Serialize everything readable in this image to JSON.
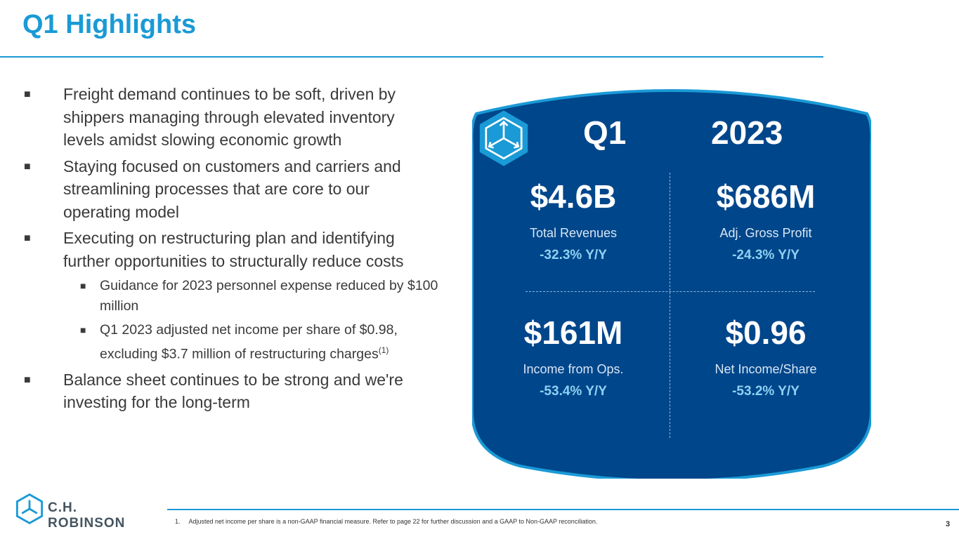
{
  "title": "Q1 Highlights",
  "bullets": {
    "b1": "Freight demand continues to be soft, driven by shippers managing through elevated inventory levels amidst slowing economic growth",
    "b2": "Staying focused on customers and carriers and streamlining processes that are core to our operating model",
    "b3": "Executing on restructuring plan and identifying further opportunities to structurally reduce costs",
    "b3a": "Guidance for 2023 personnel expense reduced by $100 million",
    "b3b": "Q1 2023 adjusted net income per share of $0.98, excluding $3.7 million of restructuring charges",
    "b3b_sup": "(1)",
    "b4": "Balance sheet continues to be strong and we're investing for the long-term",
    "marker": "■"
  },
  "panel": {
    "quarter": "Q1",
    "year": "2023",
    "metrics": [
      {
        "value": "$4.6B",
        "label": "Total Revenues",
        "change": "-32.3% Y/Y"
      },
      {
        "value": "$686M",
        "label": "Adj. Gross Profit",
        "change": "-24.3% Y/Y"
      },
      {
        "value": "$161M",
        "label": "Income from Ops.",
        "change": "-53.4% Y/Y"
      },
      {
        "value": "$0.96",
        "label": "Net Income/Share",
        "change": "-53.2% Y/Y"
      }
    ],
    "colors": {
      "panel_fill": "#00468b",
      "panel_edge": "#1a9ad6",
      "change_text": "#8ed1f2"
    }
  },
  "footer": {
    "brand": "C.H. ROBINSON",
    "note": "1.     Adjusted net income per share is a non-GAAP financial measure. Refer to page 22 for further discussion and a GAAP to Non-GAAP reconciliation.",
    "page": "3"
  },
  "colors": {
    "accent": "#1a9ad6",
    "body_text": "#3a3a3a"
  },
  "icons": [
    "chr-cube-logo-icon",
    "bullet-square-icon"
  ]
}
